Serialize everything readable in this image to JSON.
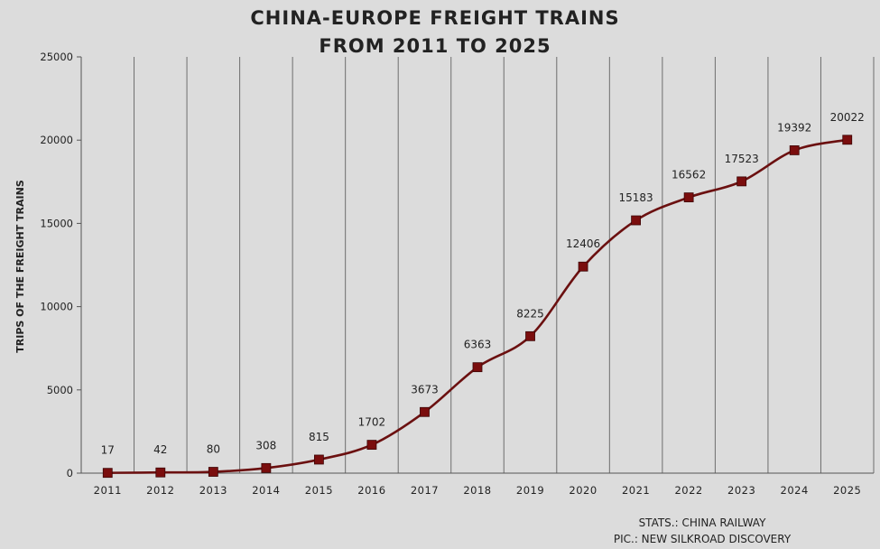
{
  "chart_data": {
    "type": "line",
    "title_lines": [
      "CHINA-EUROPE FREIGHT TRAINS",
      "FROM 2011 TO 2025"
    ],
    "ylabel": "TRIPS OF THE FREIGHT TRAINS",
    "xlabel": "",
    "ylim": [
      0,
      25000
    ],
    "yticks": [
      0,
      5000,
      10000,
      15000,
      20000,
      25000
    ],
    "grid": "vertical",
    "categories": [
      "2011",
      "2012",
      "2013",
      "2014",
      "2015",
      "2016",
      "2017",
      "2018",
      "2019",
      "2020",
      "2021",
      "2022",
      "2023",
      "2024",
      "2025"
    ],
    "values": [
      17,
      42,
      80,
      308,
      815,
      1702,
      3673,
      6363,
      8225,
      12406,
      15183,
      16562,
      17523,
      19392,
      20022
    ],
    "data_labels": [
      "17",
      "42",
      "80",
      "308",
      "815",
      "1702",
      "3673",
      "6363",
      "8225",
      "12406",
      "15183",
      "16562",
      "17523",
      "19392",
      "20022"
    ],
    "line_color": "#6b1010",
    "marker_color": "#7a0d0d",
    "marker": "square"
  },
  "credits": {
    "stats": "STATS.: CHINA RAILWAY",
    "pic": "PIC.: NEW SILKROAD DISCOVERY"
  }
}
